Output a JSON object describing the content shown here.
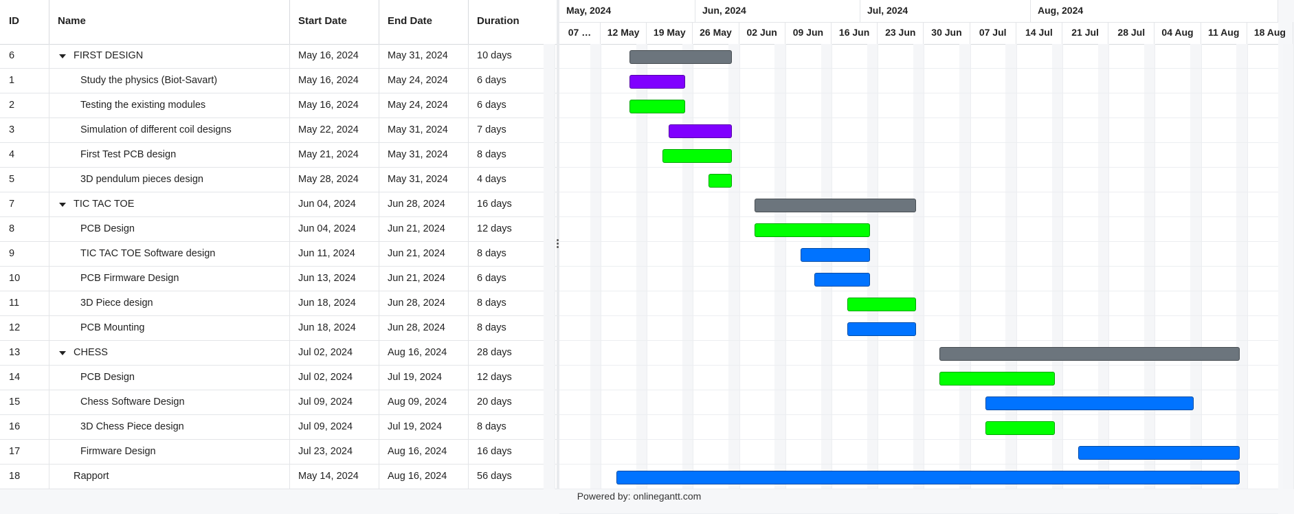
{
  "columns": {
    "id": "ID",
    "name": "Name",
    "start": "Start Date",
    "end": "End Date",
    "duration": "Duration"
  },
  "timeline": {
    "months": [
      "May, 2024",
      "Jun, 2024",
      "Jul, 2024",
      "Aug, 2024"
    ],
    "weeks": [
      "07 …",
      "12 May",
      "19 May",
      "26 May",
      "02 Jun",
      "09 Jun",
      "16 Jun",
      "23 Jun",
      "30 Jun",
      "07 Jul",
      "14 Jul",
      "21 Jul",
      "28 Jul",
      "04 Aug",
      "11 Aug",
      "18 Aug"
    ]
  },
  "colors": {
    "group": "#6c757d",
    "purple": "#8000ff",
    "green": "#00ff00",
    "blue": "#0073ff"
  },
  "tasks": [
    {
      "id": "6",
      "name": "FIRST DESIGN",
      "start": "May 16, 2024",
      "end": "May 31, 2024",
      "duration": "10 days",
      "group": true,
      "color": "group"
    },
    {
      "id": "1",
      "name": "Study the physics (Biot-Savart)",
      "start": "May 16, 2024",
      "end": "May 24, 2024",
      "duration": "6 days",
      "child": true,
      "color": "purple"
    },
    {
      "id": "2",
      "name": "Testing the existing modules",
      "start": "May 16, 2024",
      "end": "May 24, 2024",
      "duration": "6 days",
      "child": true,
      "color": "green"
    },
    {
      "id": "3",
      "name": "Simulation of different coil designs",
      "start": "May 22, 2024",
      "end": "May 31, 2024",
      "duration": "7 days",
      "child": true,
      "color": "purple"
    },
    {
      "id": "4",
      "name": "First Test PCB design",
      "start": "May 21, 2024",
      "end": "May 31, 2024",
      "duration": "8 days",
      "child": true,
      "color": "green"
    },
    {
      "id": "5",
      "name": "3D pendulum pieces design",
      "start": "May 28, 2024",
      "end": "May 31, 2024",
      "duration": "4 days",
      "child": true,
      "color": "green"
    },
    {
      "id": "7",
      "name": "TIC TAC TOE",
      "start": "Jun 04, 2024",
      "end": "Jun 28, 2024",
      "duration": "16 days",
      "group": true,
      "color": "group"
    },
    {
      "id": "8",
      "name": "PCB Design",
      "start": "Jun 04, 2024",
      "end": "Jun 21, 2024",
      "duration": "12 days",
      "child": true,
      "color": "green"
    },
    {
      "id": "9",
      "name": "TIC TAC TOE Software design",
      "start": "Jun 11, 2024",
      "end": "Jun 21, 2024",
      "duration": "8 days",
      "child": true,
      "color": "blue"
    },
    {
      "id": "10",
      "name": "PCB Firmware Design",
      "start": "Jun 13, 2024",
      "end": "Jun 21, 2024",
      "duration": "6 days",
      "child": true,
      "color": "blue"
    },
    {
      "id": "11",
      "name": "3D Piece design",
      "start": "Jun 18, 2024",
      "end": "Jun 28, 2024",
      "duration": "8 days",
      "child": true,
      "color": "green"
    },
    {
      "id": "12",
      "name": "PCB Mounting",
      "start": "Jun 18, 2024",
      "end": "Jun 28, 2024",
      "duration": "8 days",
      "child": true,
      "color": "blue"
    },
    {
      "id": "13",
      "name": "CHESS",
      "start": "Jul 02, 2024",
      "end": "Aug 16, 2024",
      "duration": "28 days",
      "group": true,
      "color": "group"
    },
    {
      "id": "14",
      "name": "PCB Design",
      "start": "Jul 02, 2024",
      "end": "Jul 19, 2024",
      "duration": "12 days",
      "child": true,
      "color": "green"
    },
    {
      "id": "15",
      "name": "Chess Software Design",
      "start": "Jul 09, 2024",
      "end": "Aug 09, 2024",
      "duration": "20 days",
      "child": true,
      "color": "blue"
    },
    {
      "id": "16",
      "name": "3D Chess Piece design",
      "start": "Jul 09, 2024",
      "end": "Jul 19, 2024",
      "duration": "8 days",
      "child": true,
      "color": "green"
    },
    {
      "id": "17",
      "name": "Firmware Design",
      "start": "Jul 23, 2024",
      "end": "Aug 16, 2024",
      "duration": "16 days",
      "child": true,
      "color": "blue"
    },
    {
      "id": "18",
      "name": "Rapport",
      "start": "May 14, 2024",
      "end": "Aug 16, 2024",
      "duration": "56 days",
      "color": "blue"
    }
  ],
  "footer": "Powered by: onlinegantt.com"
}
